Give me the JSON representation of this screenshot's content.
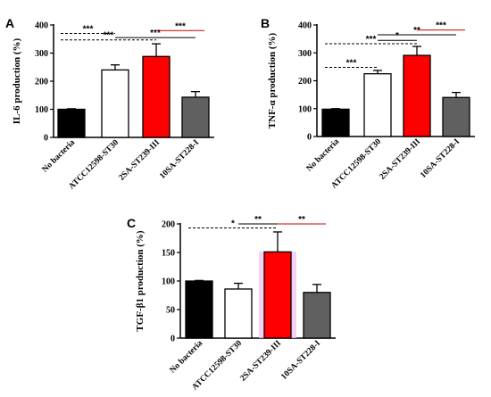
{
  "chart_data": [
    {
      "panel": "A",
      "type": "bar",
      "ylabel": "IL-6 production (%)",
      "ylim": [
        0,
        400
      ],
      "yticks": [
        0,
        100,
        200,
        300,
        400
      ],
      "categories": [
        "No bacteria",
        "ATCC12598-ST30",
        "2SA-ST239-III",
        "10SA-ST228-I"
      ],
      "values": [
        100,
        240,
        288,
        143
      ],
      "errors": [
        2,
        18,
        45,
        20
      ],
      "colors": [
        "#000000",
        "#ffffff",
        "#ff0000",
        "#606060"
      ],
      "significance": [
        {
          "from": 0,
          "to": 1,
          "y": 370,
          "label": "***",
          "style": "dashed",
          "color": "#000000"
        },
        {
          "from": 0,
          "to": 2,
          "y": 347,
          "label": "***",
          "style": "dashed",
          "color": "#000000"
        },
        {
          "from": 1,
          "to": 3,
          "y": 355,
          "label": "***",
          "style": "solid",
          "color": "#000000"
        },
        {
          "from": 2,
          "to": 3,
          "y": 380,
          "label": "***",
          "style": "solid",
          "color": "#cc0000"
        }
      ]
    },
    {
      "panel": "B",
      "type": "bar",
      "ylabel": "TNF-α production (%)",
      "ylim": [
        0,
        400
      ],
      "yticks": [
        0,
        100,
        200,
        300,
        400
      ],
      "categories": [
        "No bacteria",
        "ATCC12598-ST30",
        "2SA-ST239-III",
        "10SA-ST228-I"
      ],
      "values": [
        98,
        225,
        291,
        140
      ],
      "errors": [
        2,
        12,
        32,
        18
      ],
      "colors": [
        "#000000",
        "#ffffff",
        "#ff0000",
        "#606060"
      ],
      "significance": [
        {
          "from": 0,
          "to": 1,
          "y": 248,
          "label": "***",
          "style": "dashed",
          "color": "#000000"
        },
        {
          "from": 0,
          "to": 2,
          "y": 333,
          "label": "***",
          "style": "dashed",
          "color": "#000000"
        },
        {
          "from": 1,
          "to": 2,
          "y": 345,
          "label": "*",
          "style": "solid",
          "color": "#000000"
        },
        {
          "from": 1,
          "to": 3,
          "y": 365,
          "label": "**",
          "style": "solid",
          "color": "#000000"
        },
        {
          "from": 2,
          "to": 3,
          "y": 382,
          "label": "***",
          "style": "solid",
          "color": "#cc0000"
        }
      ]
    },
    {
      "panel": "C",
      "type": "bar",
      "ylabel": "TGF-β1 production (%)",
      "ylim": [
        0,
        200
      ],
      "yticks": [
        0,
        50,
        100,
        150,
        200
      ],
      "categories": [
        "No bacteria",
        "ATCC12598-ST30",
        "2SA-ST239-III",
        "10SA-ST228-I"
      ],
      "values": [
        100,
        86,
        151,
        80
      ],
      "errors": [
        1,
        10,
        35,
        14
      ],
      "colors": [
        "#000000",
        "#ffffff",
        "#ff0000",
        "#606060"
      ],
      "highlight_bar": 2,
      "highlight_color": "#f4c6f1",
      "significance": [
        {
          "from": 0,
          "to": 2,
          "y": 193,
          "label": "*",
          "style": "dashed",
          "color": "#000000"
        },
        {
          "from": 1,
          "to": 2,
          "y": 200,
          "label": "**",
          "style": "solid",
          "color": "#000000"
        },
        {
          "from": 2,
          "to": 3,
          "y": 200,
          "label": "**",
          "style": "solid",
          "color": "#cc0000"
        }
      ]
    }
  ]
}
